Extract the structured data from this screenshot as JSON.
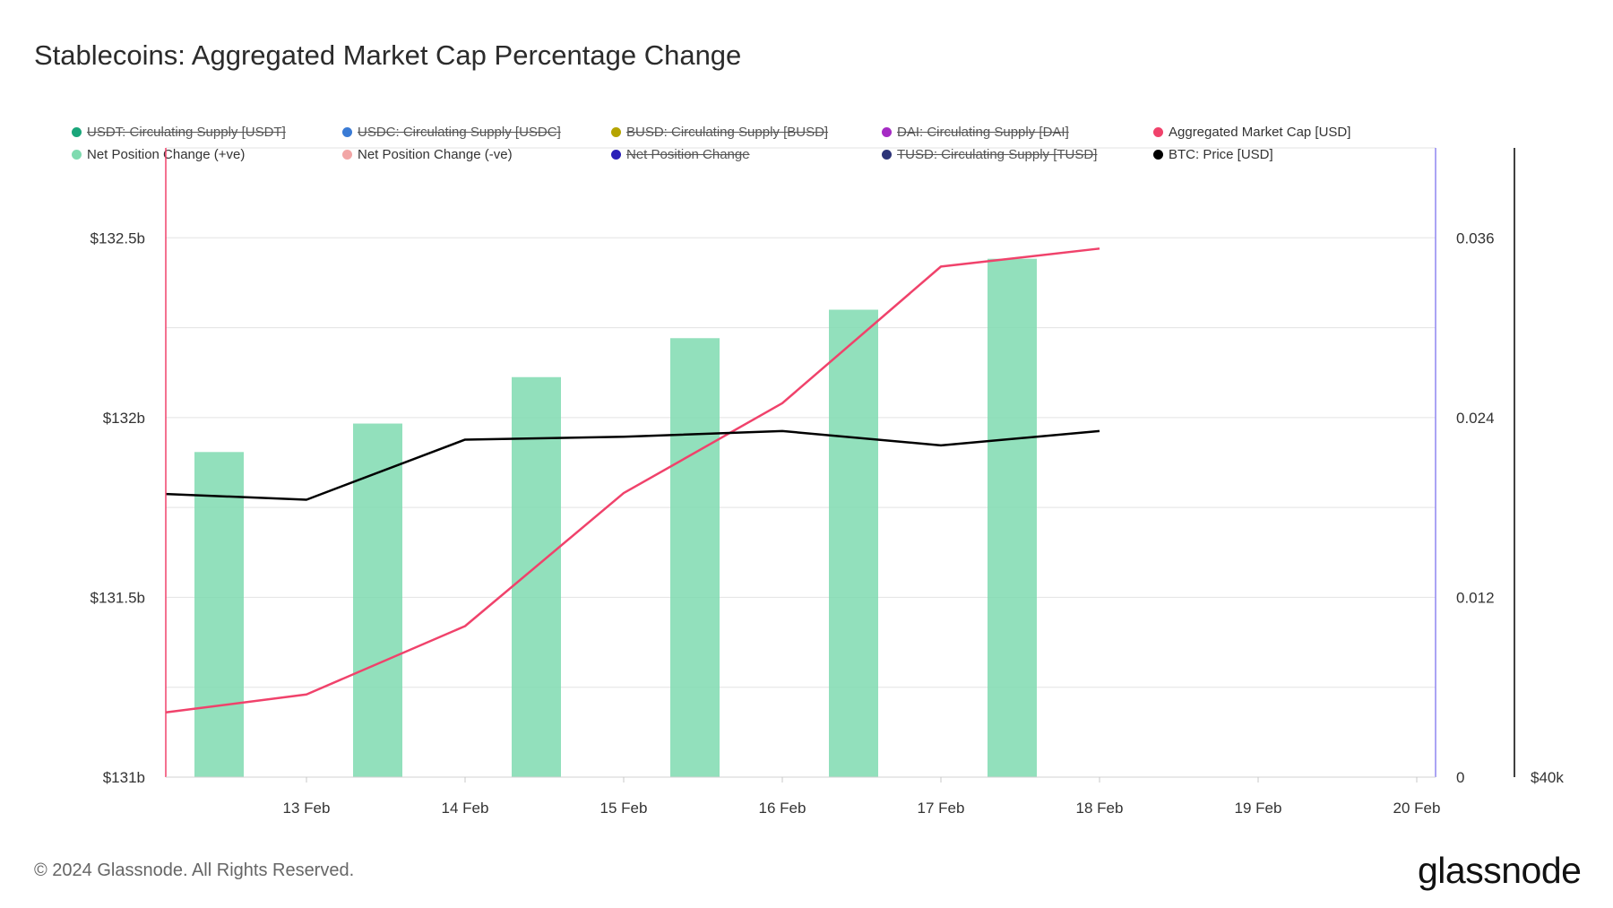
{
  "title": "Stablecoins: Aggregated Market Cap Percentage Change",
  "footer": {
    "copyright": "© 2024 Glassnode. All Rights Reserved.",
    "brand": "glassnode"
  },
  "legend": [
    {
      "label": "USDT: Circulating Supply [USDT]",
      "color": "#1aa67a",
      "active": false
    },
    {
      "label": "USDC: Circulating Supply [USDC]",
      "color": "#3a7bd5",
      "active": false
    },
    {
      "label": "BUSD: Circulating Supply [BUSD]",
      "color": "#b5a400",
      "active": false
    },
    {
      "label": "DAI: Circulating Supply [DAI]",
      "color": "#a52bc4",
      "active": false
    },
    {
      "label": "Aggregated Market Cap [USD]",
      "color": "#f0426b",
      "active": true
    },
    {
      "label": "Net Position Change (+ve)",
      "color": "#7fdbb0",
      "active": true
    },
    {
      "label": "Net Position Change (-ve)",
      "color": "#f2a6a6",
      "active": true
    },
    {
      "label": "Net Position Change",
      "color": "#2a1fb8",
      "active": false
    },
    {
      "label": "TUSD: Circulating Supply [TUSD]",
      "color": "#2d3478",
      "active": false
    },
    {
      "label": "BTC: Price [USD]",
      "color": "#000000",
      "active": true
    }
  ],
  "chart_data": {
    "type": "bar",
    "x_ticks": [
      "13 Feb",
      "14 Feb",
      "15 Feb",
      "16 Feb",
      "17 Feb",
      "18 Feb",
      "19 Feb",
      "20 Feb"
    ],
    "left_axis": {
      "ticks": [
        "$131b",
        "$131.5b",
        "$132b",
        "$132.5b"
      ],
      "range": [
        131.0,
        132.75
      ],
      "unit": "USD billions"
    },
    "right_axis": {
      "ticks": [
        "0",
        "0.012",
        "0.024",
        "0.036"
      ],
      "range": [
        0,
        0.042
      ]
    },
    "btc_axis": {
      "ticks": [
        "$40k"
      ]
    },
    "grid": true,
    "legend_position": "top",
    "series": [
      {
        "name": "Net Position Change (+ve)",
        "kind": "bar",
        "axis": "right",
        "color": "#7fdbb0",
        "x": [
          "2024-02-12",
          "2024-02-13",
          "2024-02-14",
          "2024-02-15",
          "2024-02-16",
          "2024-02-17"
        ],
        "values": [
          0.0217,
          0.0236,
          0.0267,
          0.0293,
          0.0312,
          0.0346
        ]
      },
      {
        "name": "Aggregated Market Cap [USD]",
        "kind": "line",
        "axis": "left",
        "color": "#f0426b",
        "x": [
          "2024-02-12",
          "2024-02-13",
          "2024-02-14",
          "2024-02-15",
          "2024-02-16",
          "2024-02-17",
          "2024-02-18"
        ],
        "values": [
          131.18,
          131.23,
          131.42,
          131.79,
          132.04,
          132.42,
          132.47
        ]
      },
      {
        "name": "BTC: Price [USD]",
        "kind": "line",
        "axis": "btc",
        "color": "#000000",
        "x": [
          "2024-02-12",
          "2024-02-13",
          "2024-02-14",
          "2024-02-15",
          "2024-02-16",
          "2024-02-17",
          "2024-02-18"
        ],
        "values": [
          49900,
          49700,
          51800,
          51900,
          52100,
          51600,
          52100
        ]
      }
    ]
  }
}
